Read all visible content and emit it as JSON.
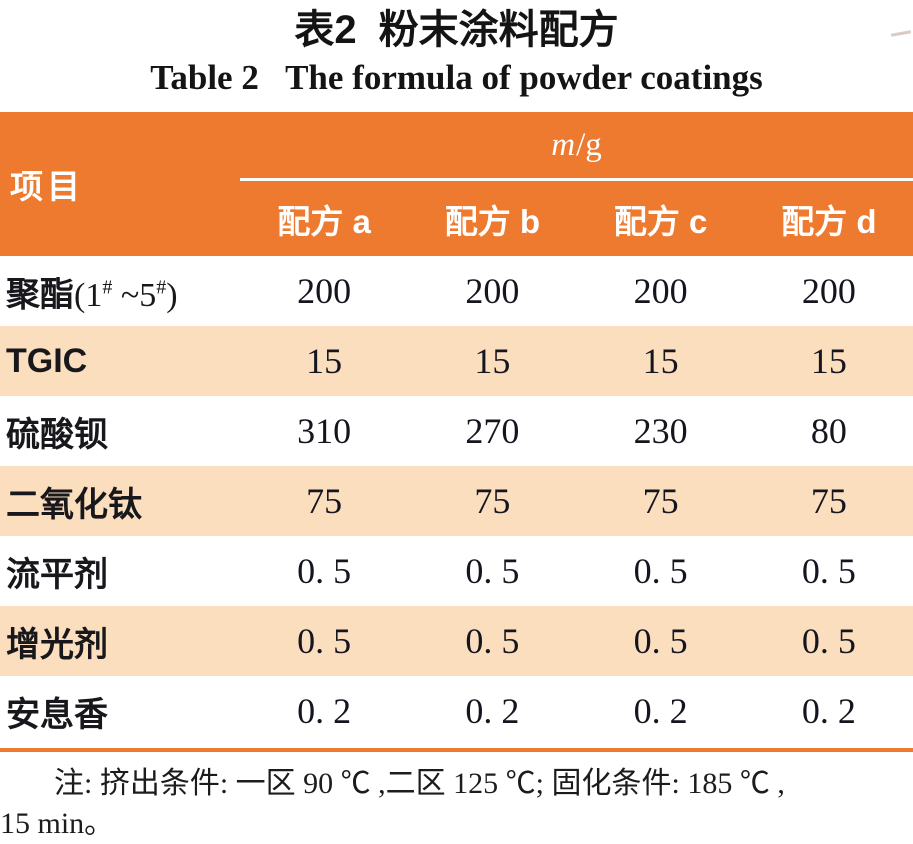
{
  "page": {
    "title_zh": {
      "label": "表2",
      "text": "粉末涂料配方"
    },
    "title_en": {
      "label": "Table 2",
      "text": "The formula of powder coatings"
    }
  },
  "table": {
    "item_header": "项目",
    "unit_header": {
      "symbol": "m",
      "rest": "/g"
    },
    "columns": [
      "配方 a",
      "配方 b",
      "配方 c",
      "配方 d"
    ],
    "rows": [
      {
        "label_parts": {
          "zh": "聚酯",
          "p1": "(1",
          "sup1": "#",
          "p2": " ~5",
          "sup2": "#",
          "p3": ")"
        },
        "values": [
          "200",
          "200",
          "200",
          "200"
        ]
      },
      {
        "label": "TGIC",
        "values": [
          "15",
          "15",
          "15",
          "15"
        ]
      },
      {
        "label": "硫酸钡",
        "values": [
          "310",
          "270",
          "230",
          "80"
        ]
      },
      {
        "label": "二氧化钛",
        "values": [
          "75",
          "75",
          "75",
          "75"
        ]
      },
      {
        "label": "流平剂",
        "values": [
          "0. 5",
          "0. 5",
          "0. 5",
          "0. 5"
        ]
      },
      {
        "label": "增光剂",
        "values": [
          "0. 5",
          "0. 5",
          "0. 5",
          "0. 5"
        ]
      },
      {
        "label": "安息香",
        "values": [
          "0. 2",
          "0. 2",
          "0. 2",
          "0. 2"
        ]
      }
    ]
  },
  "note": {
    "line1": "注: 挤出条件: 一区 90 ℃ ,二区 125 ℃; 固化条件: 185 ℃ ,",
    "line2": "15 min。"
  },
  "colors": {
    "header_orange": "#ED7A2E",
    "row_peach": "#FADEBE",
    "rule_orange": "#ED7A2E"
  }
}
